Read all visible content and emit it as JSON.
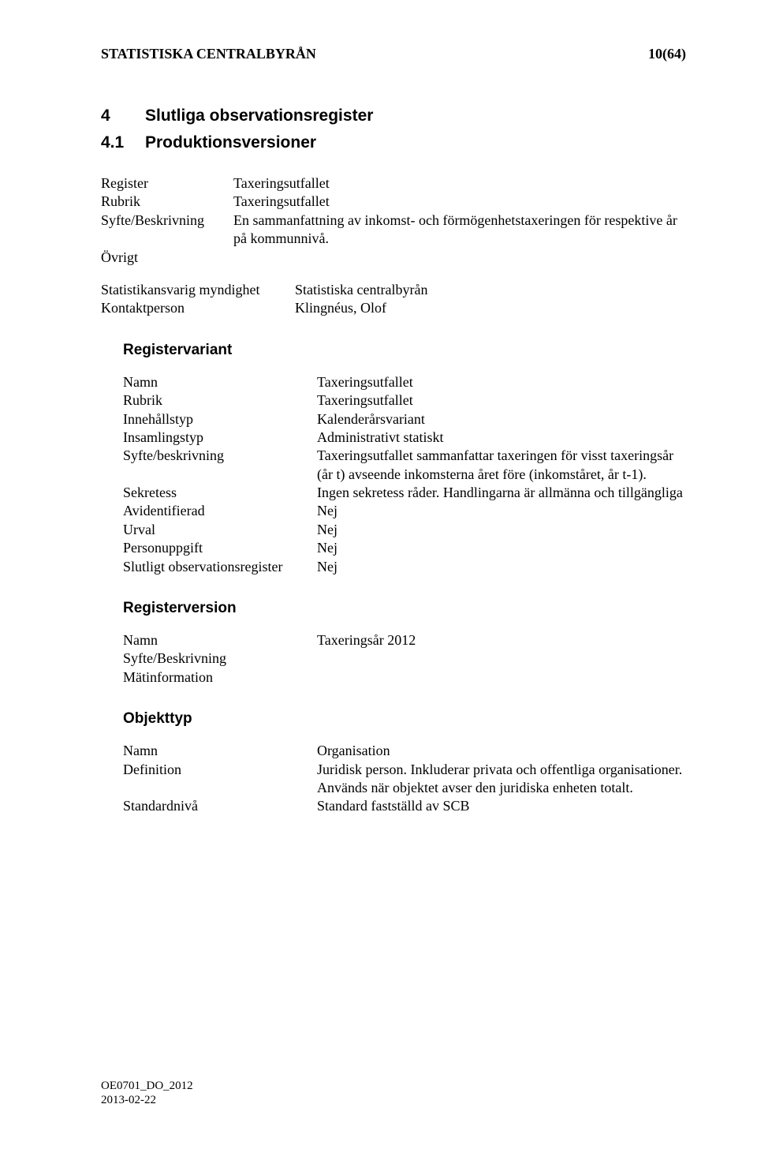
{
  "header": {
    "org": "STATISTISKA CENTRALBYRÅN",
    "page": "10(64)"
  },
  "s4": {
    "num": "4",
    "title": "Slutliga observationsregister"
  },
  "s41": {
    "num": "4.1",
    "title": "Produktionsversioner"
  },
  "register": {
    "k_register": "Register",
    "v_register": "Taxeringsutfallet",
    "k_rubrik": "Rubrik",
    "v_rubrik": "Taxeringsutfallet",
    "k_syfte": "Syfte/Beskrivning",
    "v_syfte": "En sammanfattning av inkomst- och förmögenhetstaxeringen för respektive år på kommunnivå.",
    "k_ovrigt": "Övrigt"
  },
  "stat": {
    "k_mynd": "Statistikansvarig myndighet",
    "v_mynd": "Statistiska centralbyrån",
    "k_kontakt": "Kontaktperson",
    "v_kontakt": "Klingnéus, Olof"
  },
  "variant": {
    "title": "Registervariant",
    "k_namn": "Namn",
    "v_namn": "Taxeringsutfallet",
    "k_rubrik": "Rubrik",
    "v_rubrik": "Taxeringsutfallet",
    "k_innehall": "Innehållstyp",
    "v_innehall": "Kalenderårsvariant",
    "k_insaml": "Insamlingstyp",
    "v_insaml": "Administrativt statiskt",
    "k_syfte": "Syfte/beskrivning",
    "v_syfte": "Taxeringsutfallet sammanfattar taxeringen för visst taxeringsår (år t) avseende inkomsterna året före (inkomståret, år t-1).",
    "k_sekr": "Sekretess",
    "v_sekr": "Ingen sekretess råder. Handlingarna är allmänna och tillgängliga",
    "k_avid": "Avidentifierad",
    "v_avid": "Nej",
    "k_urval": "Urval",
    "v_urval": "Nej",
    "k_person": "Personuppgift",
    "v_person": "Nej",
    "k_slut": "Slutligt observationsregister",
    "v_slut": "Nej"
  },
  "version": {
    "title": "Registerversion",
    "k_namn": "Namn",
    "v_namn": "Taxeringsår 2012",
    "k_syfte": "Syfte/Beskrivning",
    "k_mat": "Mätinformation"
  },
  "objekttyp": {
    "title": "Objekttyp",
    "k_namn": "Namn",
    "v_namn": "Organisation",
    "k_def": "Definition",
    "v_def": "Juridisk person. Inkluderar privata och offentliga organisationer. Används när objektet avser den juridiska enheten totalt.",
    "k_std": "Standardnivå",
    "v_std": "Standard fastställd av SCB"
  },
  "footer": {
    "code": "OE0701_DO_2012",
    "date": "2013-02-22"
  }
}
